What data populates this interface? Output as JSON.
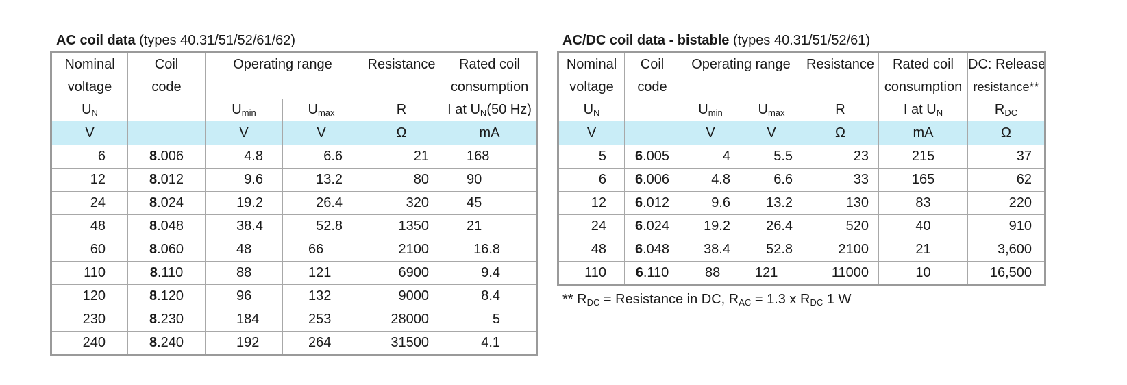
{
  "ac": {
    "title_bold": "AC coil data",
    "title_rest": "(types 40.31/51/52/61/62)",
    "headers": {
      "nominal_l1": "Nominal",
      "nominal_l2": "voltage",
      "coil_l1": "Coil",
      "coil_l2": "code",
      "oprange": "Operating range",
      "resistance": "Resistance",
      "rated_l1": "Rated coil",
      "rated_l2": "consumption",
      "un": "U",
      "un_sub": "N",
      "umin": "U",
      "umin_sub": "min",
      "umax": "U",
      "umax_sub": "max",
      "r": "R",
      "iat": "I at U",
      "iat_sub": "N",
      "iat_rest": "(50 Hz)"
    },
    "units": [
      "V",
      "",
      "V",
      "V",
      "Ω",
      "mA"
    ],
    "rows": [
      {
        "un": "6",
        "code_b": "8",
        "code_r": ".006",
        "umin": "4.8",
        "umax": "6.6",
        "r": "21",
        "i": "168"
      },
      {
        "un": "12",
        "code_b": "8",
        "code_r": ".012",
        "umin": "9.6",
        "umax": "13.2",
        "r": "80",
        "i": "90"
      },
      {
        "un": "24",
        "code_b": "8",
        "code_r": ".024",
        "umin": "19.2",
        "umax": "26.4",
        "r": "320",
        "i": "45"
      },
      {
        "un": "48",
        "code_b": "8",
        "code_r": ".048",
        "umin": "38.4",
        "umax": "52.8",
        "r": "1350",
        "i": "21"
      },
      {
        "un": "60",
        "code_b": "8",
        "code_r": ".060",
        "umin": "48",
        "umax": "66",
        "r": "2100",
        "i": "16.8"
      },
      {
        "un": "110",
        "code_b": "8",
        "code_r": ".110",
        "umin": "88",
        "umax": "121",
        "r": "6900",
        "i": "9.4"
      },
      {
        "un": "120",
        "code_b": "8",
        "code_r": ".120",
        "umin": "96",
        "umax": "132",
        "r": "9000",
        "i": "8.4"
      },
      {
        "un": "230",
        "code_b": "8",
        "code_r": ".230",
        "umin": "184",
        "umax": "253",
        "r": "28000",
        "i": "5"
      },
      {
        "un": "240",
        "code_b": "8",
        "code_r": ".240",
        "umin": "192",
        "umax": "264",
        "r": "31500",
        "i": "4.1"
      }
    ]
  },
  "dc": {
    "title_bold": "AC/DC coil data - bistable",
    "title_rest": "(types 40.31/51/52/61)",
    "headers": {
      "nominal_l1": "Nominal",
      "nominal_l2": "voltage",
      "coil_l1": "Coil",
      "coil_l2": "code",
      "oprange": "Operating range",
      "resistance": "Resistance",
      "rated_l1": "Rated coil",
      "rated_l2": "consumption",
      "release_l1": "DC: Release",
      "release_l2": "resistance**",
      "un": "U",
      "un_sub": "N",
      "umin": "U",
      "umin_sub": "min",
      "umax": "U",
      "umax_sub": "max",
      "r": "R",
      "iat": "I at U",
      "iat_sub": "N",
      "rdc": "R",
      "rdc_sub": "DC"
    },
    "units": [
      "V",
      "",
      "V",
      "V",
      "Ω",
      "mA",
      "Ω"
    ],
    "rows": [
      {
        "un": "5",
        "code_b": "6",
        "code_r": ".005",
        "umin": "4",
        "umax": "5.5",
        "r": "23",
        "i": "215",
        "rdc": "37"
      },
      {
        "un": "6",
        "code_b": "6",
        "code_r": ".006",
        "umin": "4.8",
        "umax": "6.6",
        "r": "33",
        "i": "165",
        "rdc": "62"
      },
      {
        "un": "12",
        "code_b": "6",
        "code_r": ".012",
        "umin": "9.6",
        "umax": "13.2",
        "r": "130",
        "i": "83",
        "rdc": "220"
      },
      {
        "un": "24",
        "code_b": "6",
        "code_r": ".024",
        "umin": "19.2",
        "umax": "26.4",
        "r": "520",
        "i": "40",
        "rdc": "910"
      },
      {
        "un": "48",
        "code_b": "6",
        "code_r": ".048",
        "umin": "38.4",
        "umax": "52.8",
        "r": "2100",
        "i": "21",
        "rdc": "3,600"
      },
      {
        "un": "110",
        "code_b": "6",
        "code_r": ".110",
        "umin": "88",
        "umax": "121",
        "r": "11000",
        "i": "10",
        "rdc": "16,500"
      }
    ]
  },
  "note": {
    "prefix": "** R",
    "sub1": "DC",
    "mid1": " = Resistance in DC, R",
    "sub2": "AC",
    "mid2": " = 1.3 x R",
    "sub3": "DC",
    "suffix": " 1 W"
  }
}
